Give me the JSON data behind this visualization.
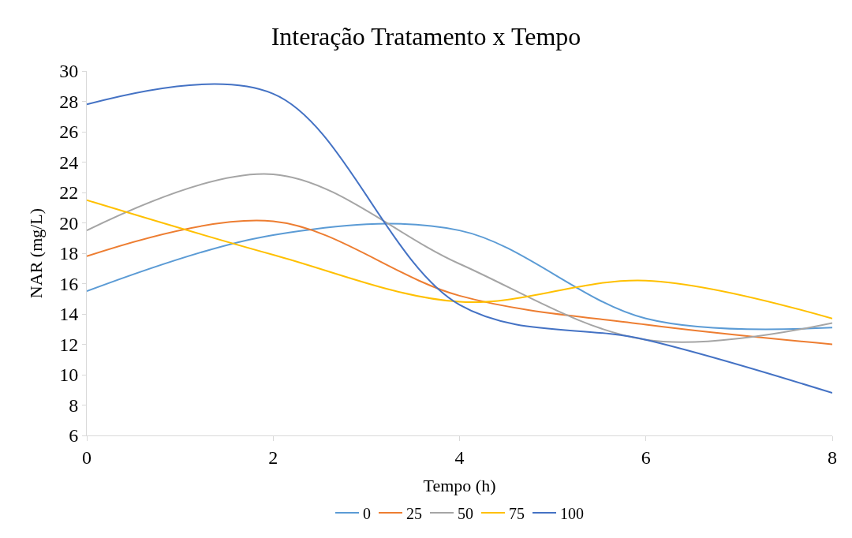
{
  "chart_data": {
    "type": "line",
    "title": "Interação Tratamento x Tempo",
    "xlabel": "Tempo (h)",
    "ylabel": "NAR (mg/L)",
    "x": [
      0,
      2,
      4,
      6,
      8
    ],
    "series": [
      {
        "name": "0",
        "color": "#5b9bd5",
        "values": [
          15.5,
          19.2,
          19.5,
          13.7,
          13.1
        ]
      },
      {
        "name": "25",
        "color": "#ed7d31",
        "values": [
          17.8,
          20.1,
          15.2,
          13.3,
          12.0
        ]
      },
      {
        "name": "50",
        "color": "#a5a5a5",
        "values": [
          19.5,
          23.2,
          17.3,
          12.3,
          13.4
        ]
      },
      {
        "name": "75",
        "color": "#ffc000",
        "values": [
          21.5,
          17.9,
          14.8,
          16.2,
          13.7
        ]
      },
      {
        "name": "100",
        "color": "#4472c4",
        "values": [
          27.8,
          28.5,
          14.6,
          12.3,
          8.8
        ]
      }
    ],
    "xlim": [
      0,
      8
    ],
    "xticks": [
      0,
      2,
      4,
      6,
      8
    ],
    "ylim": [
      6,
      30
    ],
    "yticks": [
      6,
      8,
      10,
      12,
      14,
      16,
      18,
      20,
      22,
      24,
      26,
      28,
      30
    ],
    "legend": "bottom",
    "marker": "none",
    "line_style": "solid"
  }
}
